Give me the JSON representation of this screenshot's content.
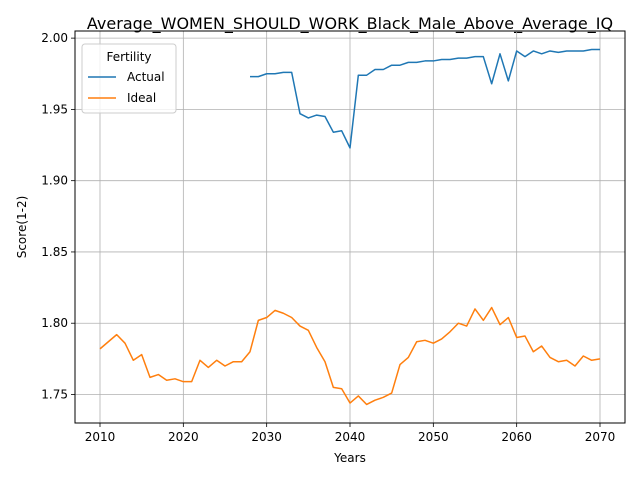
{
  "chart_data": {
    "type": "line",
    "title": "Average_WOMEN_SHOULD_WORK_Black_Male_Above_Average_IQ",
    "xlabel": "Years",
    "ylabel": "Score(1-2)",
    "xlim": [
      2007,
      2073
    ],
    "ylim": [
      1.73,
      2.005
    ],
    "grid": true,
    "legend": {
      "title": "Fertility",
      "position": "top-left"
    },
    "x_ticks": [
      "2010",
      "2020",
      "2030",
      "2040",
      "2050",
      "2060",
      "2070"
    ],
    "y_ticks": [
      "1.75",
      "1.80",
      "1.85",
      "1.90",
      "1.95",
      "2.00"
    ],
    "series": [
      {
        "name": "Actual",
        "color": "#1f77b4",
        "x": [
          2028,
          2029,
          2030,
          2031,
          2032,
          2033,
          2034,
          2035,
          2036,
          2037,
          2038,
          2039,
          2040,
          2041,
          2042,
          2043,
          2044,
          2045,
          2046,
          2047,
          2048,
          2049,
          2050,
          2051,
          2052,
          2053,
          2054,
          2055,
          2056,
          2057,
          2058,
          2059,
          2060,
          2061,
          2062,
          2063,
          2064,
          2065,
          2066,
          2067,
          2068,
          2069,
          2070
        ],
        "values": [
          1.973,
          1.973,
          1.975,
          1.975,
          1.976,
          1.976,
          1.947,
          1.944,
          1.946,
          1.945,
          1.934,
          1.935,
          1.923,
          1.974,
          1.974,
          1.978,
          1.978,
          1.981,
          1.981,
          1.983,
          1.983,
          1.984,
          1.984,
          1.985,
          1.985,
          1.986,
          1.986,
          1.987,
          1.987,
          1.968,
          1.989,
          1.97,
          1.991,
          1.987,
          1.991,
          1.989,
          1.991,
          1.99,
          1.991,
          1.991,
          1.991,
          1.992,
          1.992
        ]
      },
      {
        "name": "Ideal",
        "color": "#ff7f0e",
        "x": [
          2010,
          2011,
          2012,
          2013,
          2014,
          2015,
          2016,
          2017,
          2018,
          2019,
          2020,
          2021,
          2022,
          2023,
          2024,
          2025,
          2026,
          2027,
          2028,
          2029,
          2030,
          2031,
          2032,
          2033,
          2034,
          2035,
          2036,
          2037,
          2038,
          2039,
          2040,
          2041,
          2042,
          2043,
          2044,
          2045,
          2046,
          2047,
          2048,
          2049,
          2050,
          2051,
          2052,
          2053,
          2054,
          2055,
          2056,
          2057,
          2058,
          2059,
          2060,
          2061,
          2062,
          2063,
          2064,
          2065,
          2066,
          2067,
          2068,
          2069,
          2070
        ],
        "values": [
          1.782,
          1.787,
          1.792,
          1.786,
          1.774,
          1.778,
          1.762,
          1.764,
          1.76,
          1.761,
          1.759,
          1.759,
          1.774,
          1.769,
          1.774,
          1.77,
          1.773,
          1.773,
          1.78,
          1.802,
          1.804,
          1.809,
          1.807,
          1.804,
          1.798,
          1.795,
          1.783,
          1.773,
          1.755,
          1.754,
          1.744,
          1.749,
          1.743,
          1.746,
          1.748,
          1.751,
          1.771,
          1.776,
          1.787,
          1.788,
          1.786,
          1.789,
          1.794,
          1.8,
          1.798,
          1.81,
          1.802,
          1.811,
          1.799,
          1.804,
          1.79,
          1.791,
          1.78,
          1.784,
          1.776,
          1.773,
          1.774,
          1.77,
          1.777,
          1.774,
          1.775
        ]
      }
    ]
  }
}
